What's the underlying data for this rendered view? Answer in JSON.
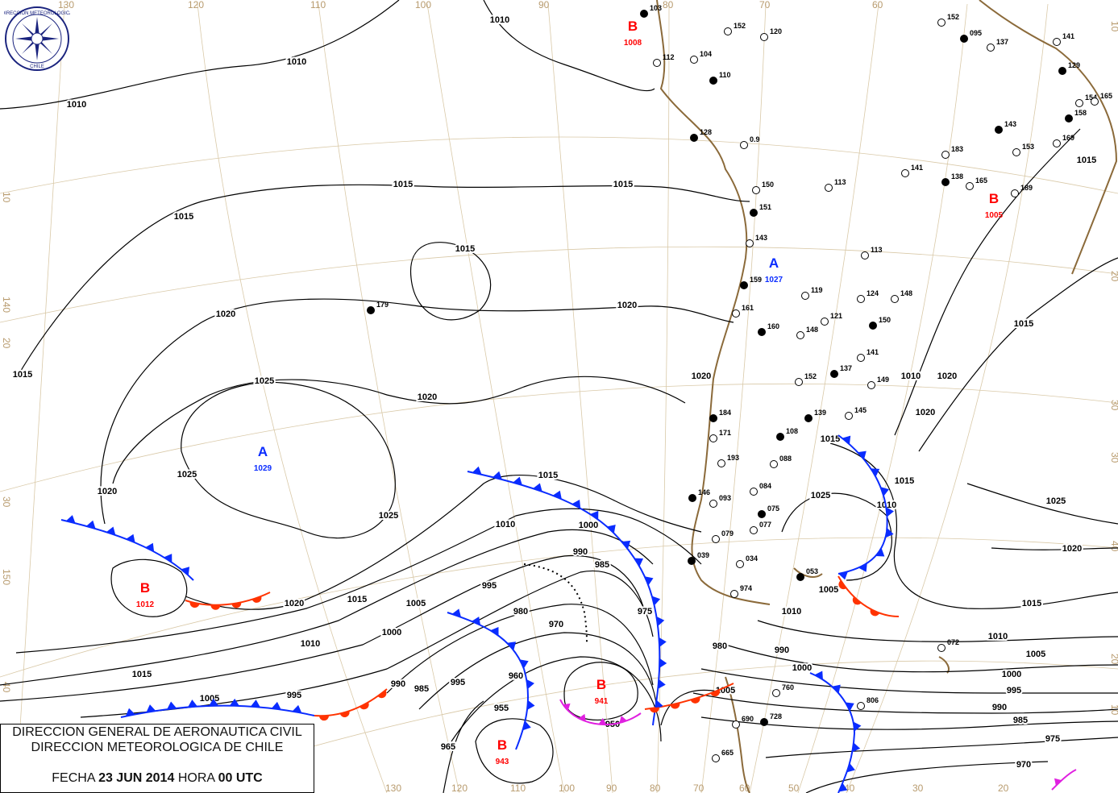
{
  "header": {
    "line1": "DIRECCION GENERAL DE AERONAUTICA CIVIL",
    "line2": "DIRECCION METEOROLOGICA DE CHILE",
    "date_prefix": "FECHA",
    "date": "23 JUN 2014",
    "hour_prefix": "HORA",
    "hour": "00 UTC"
  },
  "logo": {
    "text_top": "DIRECCION METEOROLOGICA",
    "text_bottom": "CHILE",
    "color": "#1a237e"
  },
  "colors": {
    "isobar": "#000000",
    "cold_front": "#0a2cff",
    "warm_front": "#ff3300",
    "occluded_front": "#e020e0",
    "coast": "#8b6a3a",
    "grid": "#d9c9a8",
    "high": "#0a2cff",
    "low": "#ff0000"
  },
  "grid_labels": {
    "top": [
      "130",
      "120",
      "110",
      "100",
      "90",
      "80",
      "70",
      "60"
    ],
    "bottom": [
      "130",
      "120",
      "110",
      "100",
      "90",
      "80",
      "70",
      "60",
      "50",
      "40",
      "30",
      "20"
    ],
    "left": [
      "10",
      "140",
      "20",
      "30",
      "150",
      "40"
    ],
    "right": [
      "10",
      "20",
      "30",
      "30",
      "40",
      "20",
      "10"
    ]
  },
  "pressure_centers": [
    {
      "type": "B",
      "value": "1008"
    },
    {
      "type": "A",
      "value": "1027"
    },
    {
      "type": "A",
      "value": "1029"
    },
    {
      "type": "B",
      "value": "1012"
    },
    {
      "type": "B",
      "value": "941"
    },
    {
      "type": "B",
      "value": "943"
    },
    {
      "type": "B",
      "value": "1005"
    }
  ],
  "isobar_labels": [
    "1010",
    "1010",
    "1010",
    "1015",
    "1015",
    "1015",
    "1015",
    "1015",
    "1020",
    "1020",
    "1020",
    "1025",
    "1025",
    "1025",
    "1020",
    "1015",
    "1015",
    "1010",
    "1005",
    "1000",
    "995",
    "990",
    "985",
    "980",
    "975",
    "970",
    "960",
    "955",
    "950",
    "965",
    "985",
    "990",
    "995",
    "1000",
    "1005",
    "1010",
    "1015",
    "1015",
    "1020",
    "1025",
    "1020",
    "1015",
    "1010",
    "1005",
    "1000",
    "995",
    "990",
    "985",
    "975",
    "970",
    "980",
    "990",
    "995",
    "1000",
    "1005",
    "1010",
    "1015",
    "1020",
    "1025",
    "1020",
    "1010",
    "1015",
    "1005",
    "1010",
    "1020",
    "1015"
  ],
  "stations": [
    "103",
    "112",
    "104",
    "110",
    "120",
    "152",
    "128",
    "0.9",
    "150",
    "151",
    "113",
    "143",
    "159",
    "161",
    "119",
    "160",
    "148",
    "121",
    "184",
    "171",
    "193",
    "146",
    "093",
    "084",
    "075",
    "077",
    "079",
    "039",
    "034",
    "974",
    "179",
    "113",
    "124",
    "150",
    "148",
    "141",
    "139",
    "152",
    "145",
    "108",
    "088",
    "149",
    "137",
    "183",
    "141",
    "138",
    "165",
    "189",
    "143",
    "153",
    "169",
    "158",
    "154",
    "165",
    "129",
    "141",
    "137",
    "095",
    "152",
    "760",
    "728",
    "806",
    "072",
    "053",
    "690",
    "665"
  ]
}
